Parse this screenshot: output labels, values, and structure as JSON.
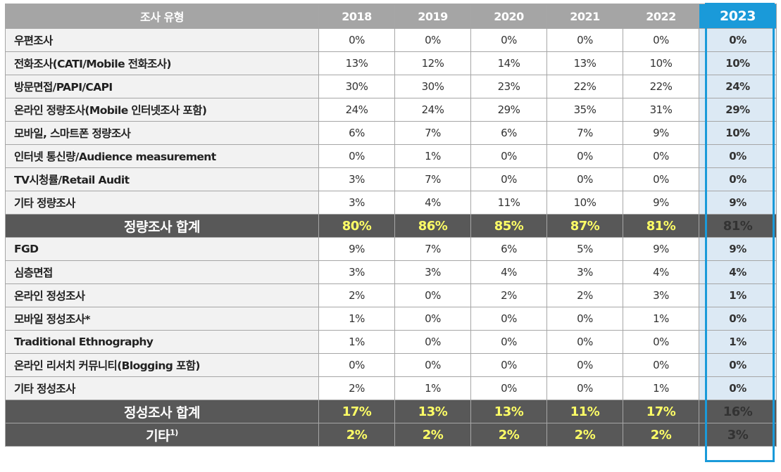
{
  "table": {
    "header": {
      "type_label": "조사 유형",
      "years": [
        "2018",
        "2019",
        "2020",
        "2021",
        "2022",
        "2023"
      ],
      "highlighted_year": "2023"
    },
    "quantitative_rows": [
      {
        "label": "우편조사",
        "values": [
          "0%",
          "0%",
          "0%",
          "0%",
          "0%",
          "0%"
        ]
      },
      {
        "label": "전화조사(CATI/Mobile 전화조사)",
        "values": [
          "13%",
          "12%",
          "14%",
          "13%",
          "10%",
          "10%"
        ]
      },
      {
        "label": "방문면접/PAPI/CAPI",
        "values": [
          "30%",
          "30%",
          "23%",
          "22%",
          "22%",
          "24%"
        ]
      },
      {
        "label": "온라인 정량조사(Mobile 인터넷조사 포함)",
        "values": [
          "24%",
          "24%",
          "29%",
          "35%",
          "31%",
          "29%"
        ]
      },
      {
        "label": "모바일, 스마트폰 정량조사",
        "values": [
          "6%",
          "7%",
          "6%",
          "7%",
          "9%",
          "10%"
        ]
      },
      {
        "label": "인터넷 통신량/Audience measurement",
        "values": [
          "0%",
          "1%",
          "0%",
          "0%",
          "0%",
          "0%"
        ]
      },
      {
        "label": "TV시청률/Retail Audit",
        "values": [
          "3%",
          "7%",
          "0%",
          "0%",
          "0%",
          "0%"
        ]
      },
      {
        "label": "기타 정량조사",
        "values": [
          "3%",
          "4%",
          "11%",
          "10%",
          "9%",
          "9%"
        ]
      }
    ],
    "quantitative_total": {
      "label": "정량조사 합계",
      "values": [
        "80%",
        "86%",
        "85%",
        "87%",
        "81%",
        "81%"
      ]
    },
    "qualitative_rows": [
      {
        "label": "FGD",
        "values": [
          "9%",
          "7%",
          "6%",
          "5%",
          "9%",
          "9%"
        ]
      },
      {
        "label": "심층면접",
        "values": [
          "3%",
          "3%",
          "4%",
          "3%",
          "4%",
          "4%"
        ]
      },
      {
        "label": "온라인 정성조사",
        "values": [
          "2%",
          "0%",
          "2%",
          "2%",
          "3%",
          "1%"
        ]
      },
      {
        "label": "모바일 정성조사*",
        "values": [
          "1%",
          "0%",
          "0%",
          "0%",
          "1%",
          "0%"
        ]
      },
      {
        "label": "Traditional Ethnography",
        "values": [
          "1%",
          "0%",
          "0%",
          "0%",
          "0%",
          "1%"
        ]
      },
      {
        "label": "온라인 리서치 커뮤니티(Blogging 포함)",
        "values": [
          "0%",
          "0%",
          "0%",
          "0%",
          "0%",
          "0%"
        ]
      },
      {
        "label": "기타 정성조사",
        "values": [
          "2%",
          "1%",
          "0%",
          "0%",
          "1%",
          "0%"
        ]
      }
    ],
    "qualitative_total": {
      "label": "정성조사 합계",
      "values": [
        "17%",
        "13%",
        "13%",
        "11%",
        "17%",
        "16%"
      ]
    },
    "other_total": {
      "label": "기타",
      "label_sup": "1)",
      "values": [
        "2%",
        "2%",
        "2%",
        "2%",
        "2%",
        "3%"
      ]
    }
  },
  "colors": {
    "header_bg": "#a5a5a5",
    "highlight_blue": "#1a9ad9",
    "highlight_cell_bg": "#dce9f4",
    "total_row_bg": "#585858",
    "total_value_text": "#ffff66",
    "label_bg": "#f2f2f2"
  }
}
